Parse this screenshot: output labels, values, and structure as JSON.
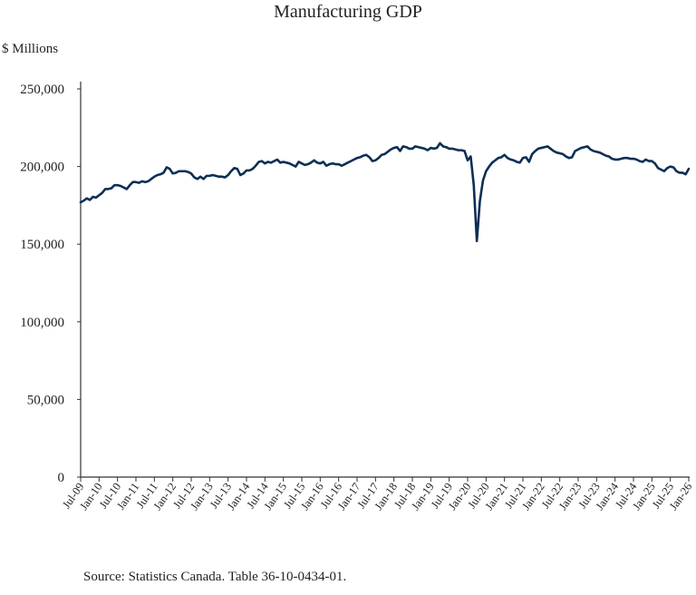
{
  "chart_data": {
    "type": "line",
    "title": "Manufacturing GDP",
    "ylabel": "$ Millions",
    "xlabel": "",
    "source": "Source: Statistics Canada. Table 36-10-0434-01.",
    "ylim": [
      0,
      250000
    ],
    "yticks": [
      0,
      50000,
      100000,
      150000,
      200000,
      250000
    ],
    "ytick_labels": [
      "0",
      "50,000",
      "100,000",
      "150,000",
      "200,000",
      "250,000"
    ],
    "x_start": "Jul-09",
    "x_end": "Mar-26",
    "xtick_labels": [
      "Jul-09",
      "Jan-10",
      "Jul-10",
      "Jan-11",
      "Jul-11",
      "Jan-12",
      "Jul-12",
      "Jan-13",
      "Jul-13",
      "Jan-14",
      "Jul-14",
      "Jan-15",
      "Jul-15",
      "Jan-16",
      "Jul-16",
      "Jan-17",
      "Jul-17",
      "Jan-18",
      "Jul-18",
      "Jan-19",
      "Jul-19",
      "Jan-20",
      "Jul-20",
      "Jan-21",
      "Jul-21",
      "Jan-22",
      "Jul-22",
      "Jan-23",
      "Jul-23",
      "Jan-24",
      "Jul-24",
      "Jan-25",
      "Jul-25",
      "Jan-26"
    ],
    "grid": false,
    "line_color": "#0d2f55",
    "series": [
      {
        "values": [
          177000,
          178000,
          179500,
          178500,
          180500,
          180000,
          181500,
          183000,
          185500,
          185500,
          186000,
          188000,
          188000,
          187500,
          186500,
          185500,
          188000,
          190000,
          190000,
          189500,
          190500,
          190000,
          190500,
          192000,
          193500,
          194500,
          195000,
          196000,
          199500,
          198500,
          195500,
          196000,
          197000,
          197000,
          197000,
          196500,
          195500,
          193000,
          192000,
          193500,
          192000,
          194000,
          194000,
          194500,
          194000,
          193500,
          193500,
          193000,
          194500,
          197000,
          199000,
          198500,
          194500,
          195500,
          197500,
          197500,
          198500,
          200500,
          203000,
          203500,
          202000,
          203000,
          202500,
          203500,
          204500,
          202500,
          203000,
          202500,
          202000,
          201000,
          200000,
          203000,
          202000,
          201000,
          201500,
          202500,
          204000,
          202500,
          202000,
          203000,
          200500,
          201500,
          202000,
          201500,
          201500,
          200500,
          201500,
          202500,
          203500,
          204500,
          205500,
          206000,
          207000,
          207500,
          206000,
          203500,
          204000,
          205500,
          207500,
          208000,
          209500,
          211000,
          212000,
          212500,
          210000,
          213000,
          212500,
          211500,
          211500,
          213000,
          212500,
          212000,
          211500,
          210500,
          212000,
          211500,
          212000,
          215000,
          213000,
          212500,
          211500,
          211500,
          211000,
          210500,
          210500,
          210000,
          204000,
          206500,
          188000,
          152000,
          178000,
          191000,
          197000,
          200000,
          202500,
          204000,
          205500,
          206000,
          207500,
          205500,
          204500,
          204000,
          203000,
          202500,
          205500,
          206000,
          203000,
          208000,
          210000,
          211500,
          212000,
          212500,
          213000,
          211500,
          210000,
          209000,
          208500,
          208000,
          206500,
          205500,
          206000,
          210000,
          211000,
          212000,
          212500,
          213000,
          211000,
          210000,
          209500,
          209000,
          208000,
          207000,
          206500,
          205000,
          204500,
          204500,
          205000,
          205500,
          205500,
          205000,
          205000,
          204500,
          203500,
          203000,
          204500,
          203500,
          203500,
          202000,
          199000,
          198000,
          197000,
          199000,
          200000,
          199500,
          197000,
          196000,
          196000,
          195000,
          198500
        ]
      }
    ]
  }
}
